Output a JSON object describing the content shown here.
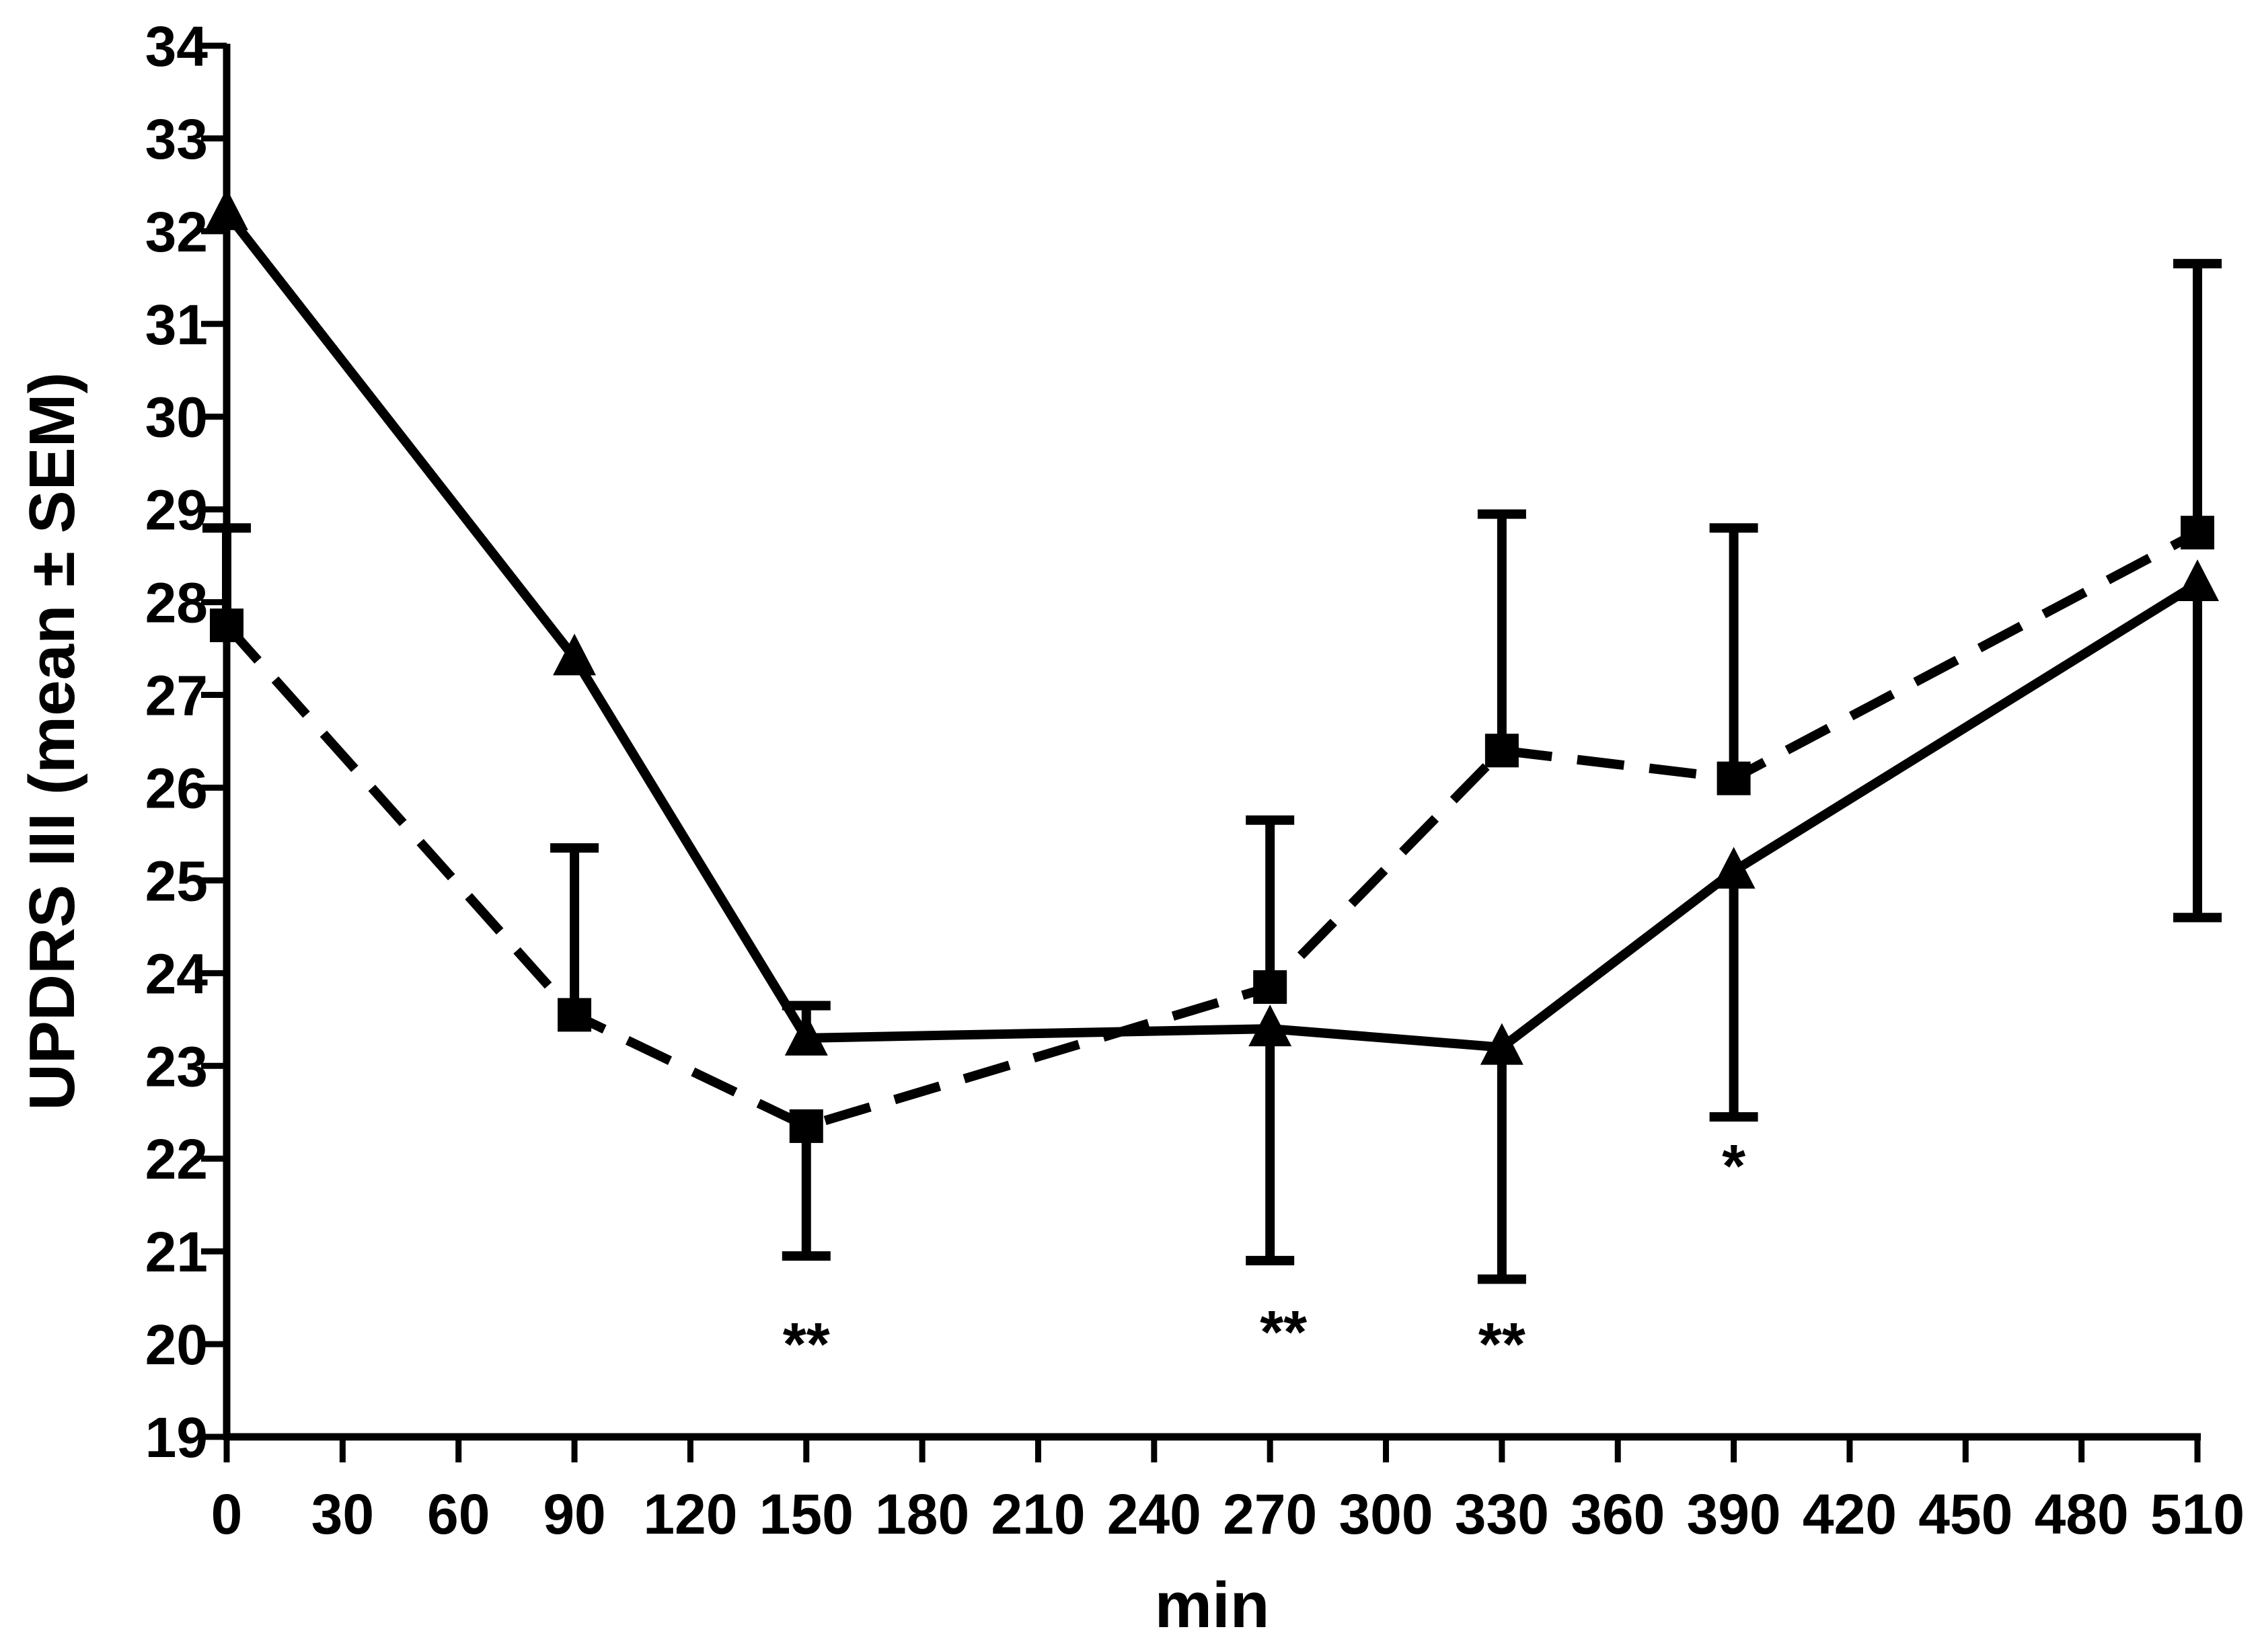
{
  "chart_data": {
    "type": "line",
    "title": "",
    "xlabel": "min",
    "ylabel": "UPDRS III (mean ± SEM)",
    "xlim": [
      0,
      510
    ],
    "ylim": [
      19,
      34
    ],
    "xticks": [
      0,
      30,
      60,
      90,
      120,
      150,
      180,
      210,
      240,
      270,
      300,
      330,
      360,
      390,
      420,
      450,
      480,
      510
    ],
    "yticks": [
      19,
      20,
      21,
      22,
      23,
      24,
      25,
      26,
      27,
      28,
      29,
      30,
      31,
      32,
      33,
      34
    ],
    "grid": false,
    "legend": "none",
    "series": [
      {
        "marker": "triangle",
        "style": "solid",
        "color": "#000000",
        "x": [
          0,
          90,
          150,
          270,
          330,
          390,
          510
        ],
        "y": [
          32.2,
          27.4,
          23.3,
          23.4,
          23.2,
          25.1,
          28.2
        ],
        "err_plus": [
          0,
          0,
          0.35,
          0,
          0,
          0,
          0
        ],
        "err_minus": [
          0,
          0,
          0,
          2.5,
          2.5,
          2.65,
          3.6
        ]
      },
      {
        "marker": "square",
        "style": "dashed",
        "color": "#000000",
        "x": [
          0,
          90,
          150,
          270,
          330,
          390,
          510
        ],
        "y": [
          27.75,
          23.55,
          22.35,
          23.85,
          26.4,
          26.1,
          28.75
        ],
        "err_plus": [
          1.05,
          1.8,
          0,
          1.8,
          2.55,
          2.7,
          2.9
        ],
        "err_minus": [
          0,
          0,
          1.4,
          0,
          0,
          0,
          0
        ]
      }
    ],
    "annotations": [
      {
        "text": "**",
        "x": 150
      },
      {
        "text": "**",
        "x": 270
      },
      {
        "text": "**",
        "x": 330
      },
      {
        "text": "*",
        "x": 390
      }
    ]
  }
}
